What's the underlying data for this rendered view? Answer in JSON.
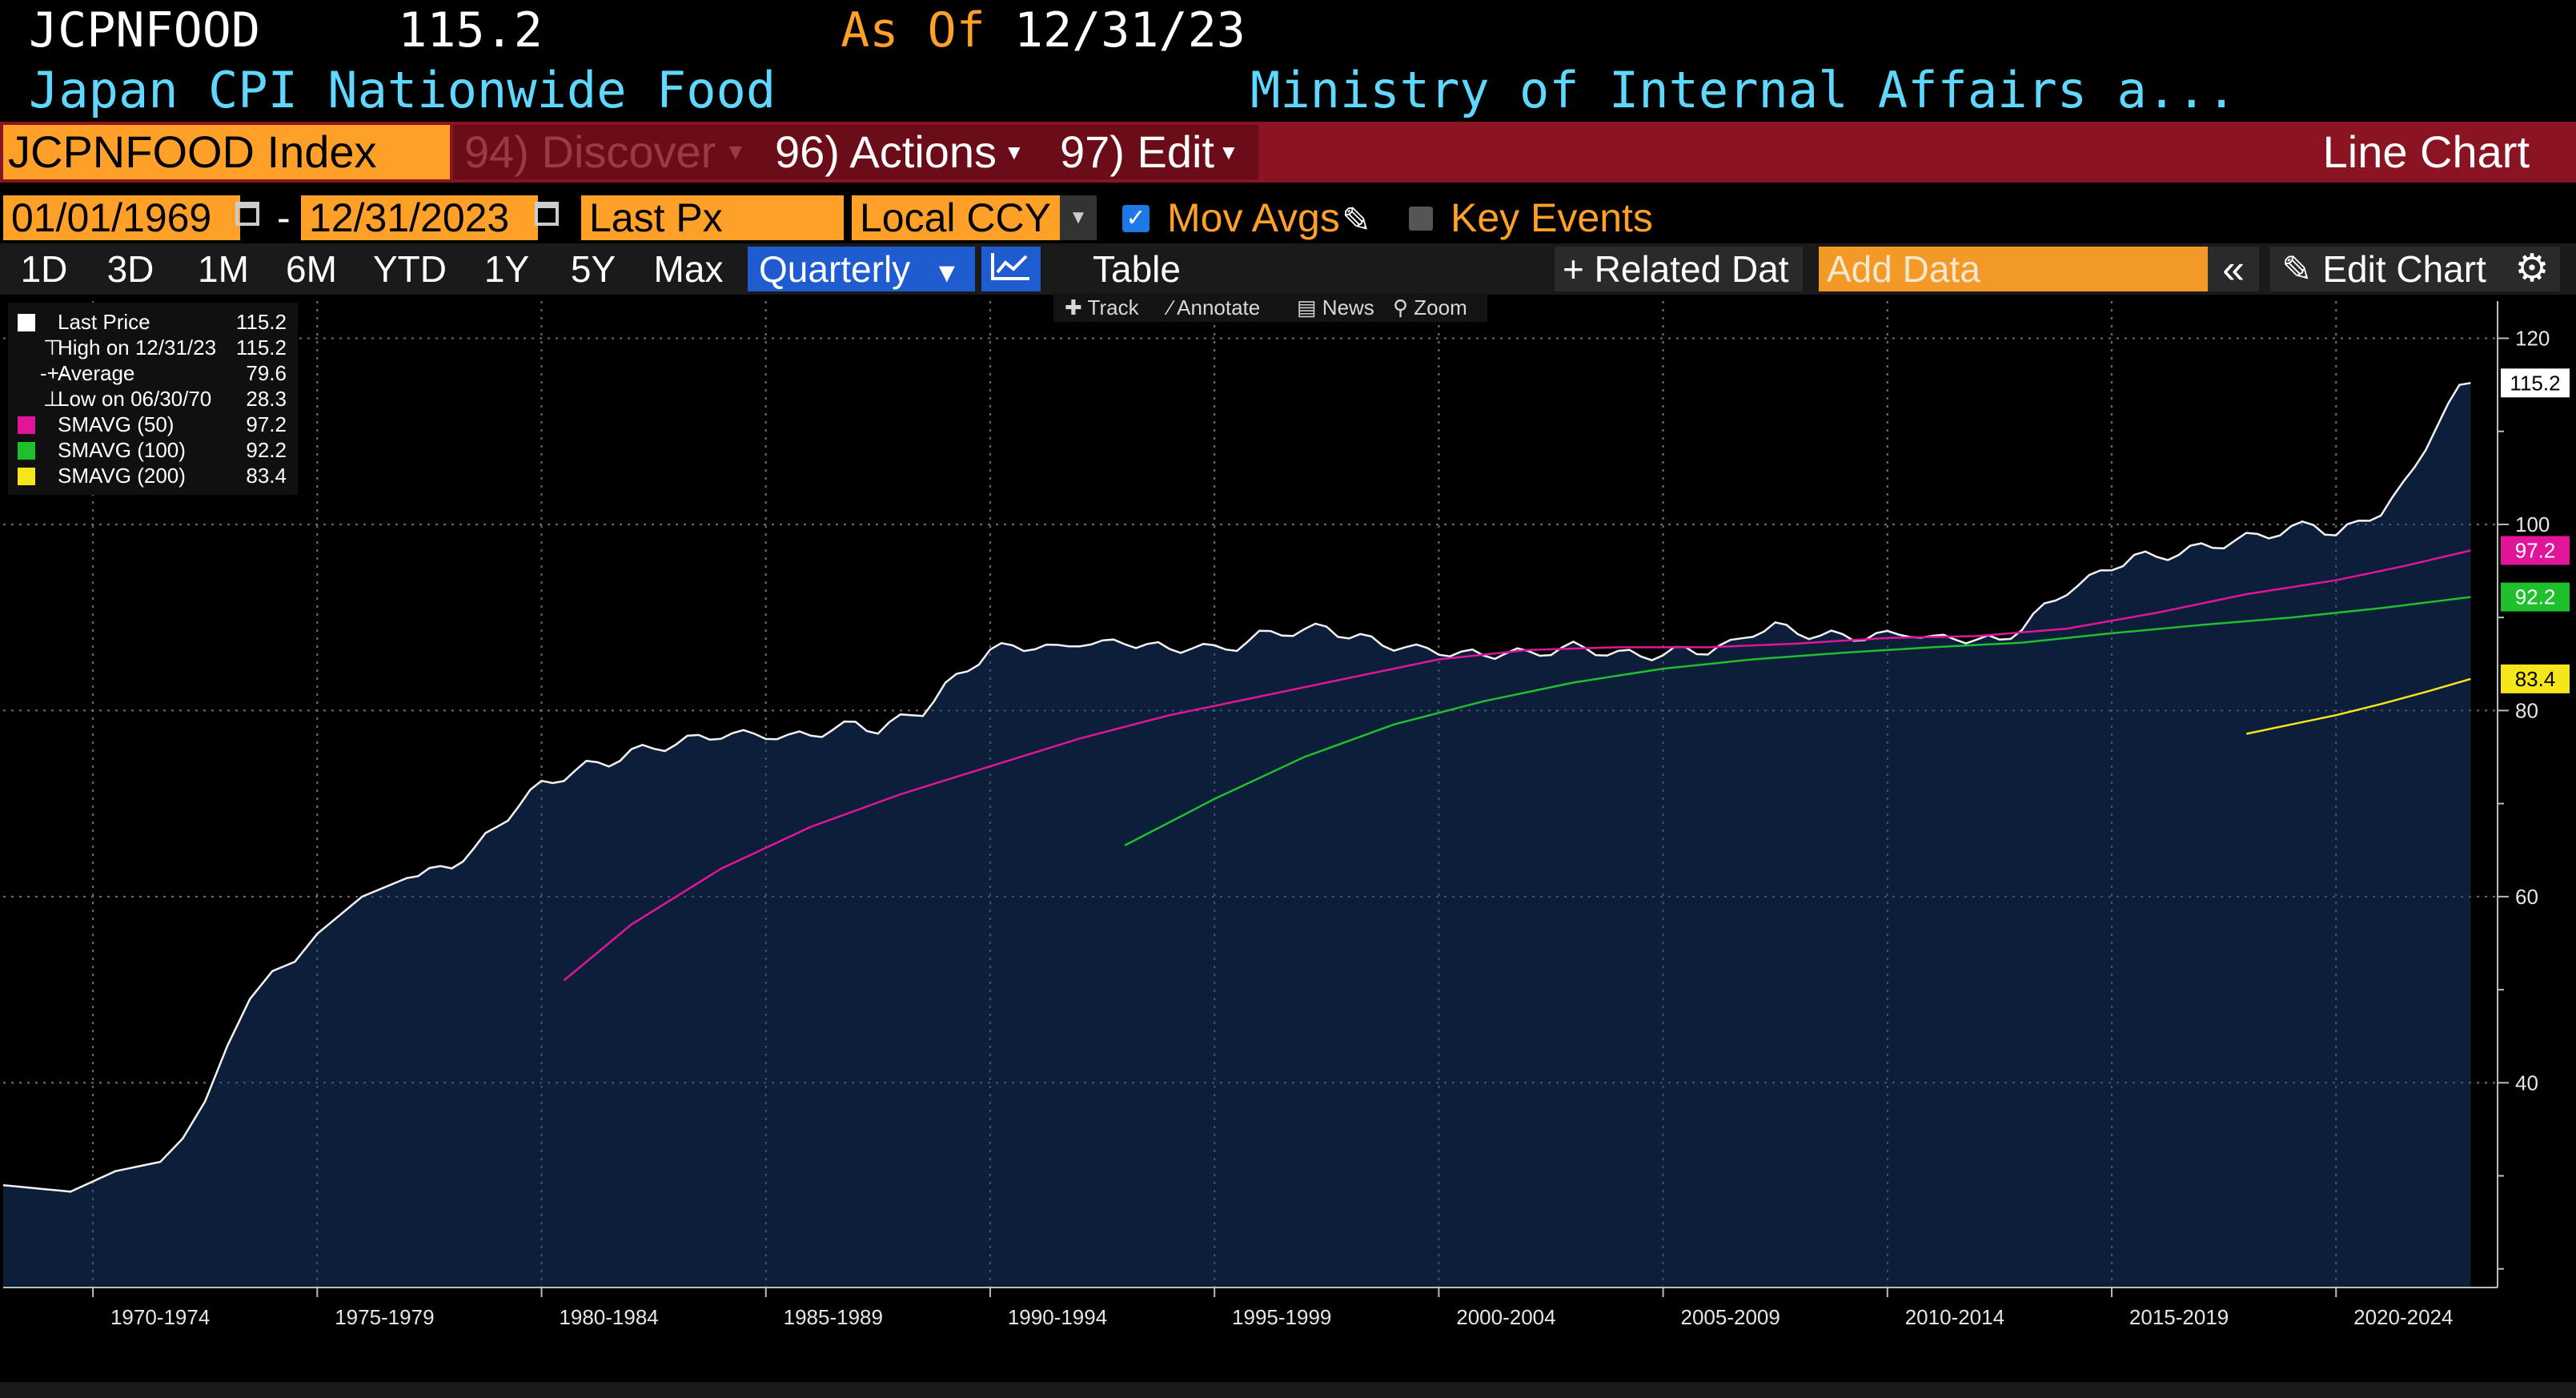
{
  "header": {
    "ticker": "JCPNFOOD",
    "price": "115.2",
    "as_of_label": "As Of",
    "as_of_date": "12/31/23",
    "name": "Japan CPI Nationwide Food",
    "source": "Ministry of Internal Affairs a..."
  },
  "toolbar": {
    "security": "JCPNFOOD Index",
    "discover": "94) Discover",
    "actions": "96) Actions",
    "edit": "97) Edit",
    "chart_type": "Line Chart"
  },
  "controls": {
    "start_date": "01/01/1969",
    "date_sep": "-",
    "end_date": "12/31/2023",
    "field": "Last Px",
    "currency": "Local CCY",
    "mov_avgs": "Mov Avgs",
    "key_events": "Key Events"
  },
  "periods": {
    "items": [
      "1D",
      "3D",
      "1M",
      "6M",
      "YTD",
      "1Y",
      "5Y",
      "Max"
    ],
    "frequency": "Quarterly",
    "table": "Table",
    "related": "+ Related Dat",
    "add_data_placeholder": "Add Data",
    "edit_chart": "Edit Chart"
  },
  "tools": [
    "Track",
    "Annotate",
    "News",
    "Zoom"
  ],
  "legend": [
    {
      "label": "Last Price",
      "value": "115.2",
      "color": "#ffffff"
    },
    {
      "label": "High on 12/31/23",
      "value": "115.2",
      "color": ""
    },
    {
      "label": "Average",
      "value": "79.6",
      "color": ""
    },
    {
      "label": "Low on 06/30/70",
      "value": "28.3",
      "color": ""
    },
    {
      "label": "SMAVG (50)",
      "value": "97.2",
      "color": "#e0159a"
    },
    {
      "label": "SMAVG (100)",
      "value": "92.2",
      "color": "#1fbf2e"
    },
    {
      "label": "SMAVG (200)",
      "value": "83.4",
      "color": "#f5e61c"
    }
  ],
  "chart_data": {
    "type": "line",
    "ylim": [
      18,
      124
    ],
    "yticks": [
      40,
      60,
      80,
      100,
      120
    ],
    "xlim": [
      1969.0,
      2024.6
    ],
    "x_ticks": [
      {
        "label": "1970-1974",
        "x": 1972.5
      },
      {
        "label": "1975-1979",
        "x": 1977.5
      },
      {
        "label": "1980-1984",
        "x": 1982.5
      },
      {
        "label": "1985-1989",
        "x": 1987.5
      },
      {
        "label": "1990-1994",
        "x": 1992.5
      },
      {
        "label": "1995-1999",
        "x": 1997.5
      },
      {
        "label": "2000-2004",
        "x": 2002.5
      },
      {
        "label": "2005-2009",
        "x": 2007.5
      },
      {
        "label": "2010-2014",
        "x": 2012.5
      },
      {
        "label": "2015-2019",
        "x": 2017.5
      },
      {
        "label": "2020-2024",
        "x": 2022.5
      }
    ],
    "x_grid": [
      1971,
      1976,
      1981,
      1986,
      1991,
      1996,
      2001,
      2006,
      2011,
      2016,
      2021
    ],
    "last_price_keys": [
      [
        1969.0,
        29.0
      ],
      [
        1970.5,
        28.3
      ],
      [
        1971.5,
        30.5
      ],
      [
        1972.5,
        31.5
      ],
      [
        1973.0,
        34.0
      ],
      [
        1973.5,
        38.0
      ],
      [
        1974.0,
        44.0
      ],
      [
        1974.5,
        49.0
      ],
      [
        1975.0,
        52.0
      ],
      [
        1975.5,
        53.0
      ],
      [
        1976.0,
        56.0
      ],
      [
        1976.5,
        58.0
      ],
      [
        1977.0,
        60.0
      ],
      [
        1977.5,
        61.0
      ],
      [
        1978.0,
        62.0
      ],
      [
        1978.5,
        62.5
      ],
      [
        1979.0,
        63.5
      ],
      [
        1979.5,
        65.0
      ],
      [
        1980.0,
        67.5
      ],
      [
        1980.5,
        70.0
      ],
      [
        1981.0,
        72.0
      ],
      [
        1981.5,
        73.0
      ],
      [
        1982.0,
        74.0
      ],
      [
        1982.5,
        74.5
      ],
      [
        1983.0,
        75.5
      ],
      [
        1983.5,
        76.0
      ],
      [
        1984.0,
        76.5
      ],
      [
        1984.5,
        77.0
      ],
      [
        1985.0,
        77.5
      ],
      [
        1985.5,
        77.3
      ],
      [
        1986.0,
        77.5
      ],
      [
        1986.5,
        77.0
      ],
      [
        1987.0,
        77.5
      ],
      [
        1987.5,
        78.0
      ],
      [
        1988.0,
        78.5
      ],
      [
        1988.5,
        78.0
      ],
      [
        1989.0,
        79.0
      ],
      [
        1989.5,
        80.0
      ],
      [
        1990.0,
        82.5
      ],
      [
        1990.5,
        84.5
      ],
      [
        1991.0,
        86.5
      ],
      [
        1991.5,
        86.8
      ],
      [
        1992.0,
        87.0
      ],
      [
        1992.5,
        86.5
      ],
      [
        1993.0,
        87.5
      ],
      [
        1993.5,
        87.0
      ],
      [
        1994.0,
        87.5
      ],
      [
        1994.5,
        87.0
      ],
      [
        1995.0,
        86.5
      ],
      [
        1995.5,
        87.0
      ],
      [
        1996.0,
        86.5
      ],
      [
        1996.5,
        87.0
      ],
      [
        1997.0,
        88.0
      ],
      [
        1997.5,
        88.5
      ],
      [
        1998.0,
        88.5
      ],
      [
        1998.5,
        89.0
      ],
      [
        1999.0,
        88.0
      ],
      [
        1999.5,
        87.5
      ],
      [
        2000.0,
        87.0
      ],
      [
        2000.5,
        86.5
      ],
      [
        2001.0,
        86.5
      ],
      [
        2001.5,
        86.0
      ],
      [
        2002.0,
        86.0
      ],
      [
        2002.5,
        86.3
      ],
      [
        2003.0,
        86.0
      ],
      [
        2003.5,
        86.5
      ],
      [
        2004.0,
        86.8
      ],
      [
        2004.5,
        86.5
      ],
      [
        2005.0,
        86.0
      ],
      [
        2005.5,
        86.0
      ],
      [
        2006.0,
        86.0
      ],
      [
        2006.5,
        86.5
      ],
      [
        2007.0,
        86.5
      ],
      [
        2007.5,
        87.0
      ],
      [
        2008.0,
        88.5
      ],
      [
        2008.5,
        89.0
      ],
      [
        2009.0,
        88.5
      ],
      [
        2009.5,
        88.0
      ],
      [
        2010.0,
        88.0
      ],
      [
        2010.5,
        88.0
      ],
      [
        2011.0,
        88.0
      ],
      [
        2011.5,
        88.5
      ],
      [
        2012.0,
        87.5
      ],
      [
        2012.5,
        88.0
      ],
      [
        2013.0,
        87.5
      ],
      [
        2013.5,
        87.5
      ],
      [
        2014.0,
        89.0
      ],
      [
        2014.5,
        91.0
      ],
      [
        2015.0,
        93.0
      ],
      [
        2015.5,
        94.0
      ],
      [
        2016.0,
        95.5
      ],
      [
        2016.5,
        96.5
      ],
      [
        2017.0,
        96.5
      ],
      [
        2017.5,
        97.0
      ],
      [
        2018.0,
        97.5
      ],
      [
        2018.5,
        98.0
      ],
      [
        2019.0,
        98.5
      ],
      [
        2019.5,
        99.0
      ],
      [
        2020.0,
        99.5
      ],
      [
        2020.5,
        100.0
      ],
      [
        2021.0,
        99.0
      ],
      [
        2021.5,
        100.0
      ],
      [
        2022.0,
        101.5
      ],
      [
        2022.5,
        104.0
      ],
      [
        2023.0,
        108.0
      ],
      [
        2023.5,
        113.0
      ],
      [
        2023.75,
        115.0
      ],
      [
        2024.0,
        115.2
      ]
    ],
    "series": [
      {
        "name": "SMAVG (50)",
        "color": "#e0159a",
        "points": [
          [
            1981.5,
            51.0
          ],
          [
            1983.0,
            57.0
          ],
          [
            1985.0,
            63.0
          ],
          [
            1987.0,
            67.5
          ],
          [
            1989.0,
            71.0
          ],
          [
            1991.0,
            74.0
          ],
          [
            1993.0,
            77.0
          ],
          [
            1995.0,
            79.5
          ],
          [
            1997.0,
            81.5
          ],
          [
            1999.0,
            83.5
          ],
          [
            2001.0,
            85.5
          ],
          [
            2003.0,
            86.5
          ],
          [
            2005.0,
            86.8
          ],
          [
            2007.0,
            86.8
          ],
          [
            2009.0,
            87.2
          ],
          [
            2011.0,
            87.8
          ],
          [
            2013.0,
            88.0
          ],
          [
            2015.0,
            88.8
          ],
          [
            2017.0,
            90.5
          ],
          [
            2019.0,
            92.5
          ],
          [
            2021.0,
            94.0
          ],
          [
            2022.5,
            95.5
          ],
          [
            2024.0,
            97.2
          ]
        ]
      },
      {
        "name": "SMAVG (100)",
        "color": "#1fbf2e",
        "points": [
          [
            1994.0,
            65.5
          ],
          [
            1996.0,
            70.5
          ],
          [
            1998.0,
            75.0
          ],
          [
            2000.0,
            78.5
          ],
          [
            2002.0,
            81.0
          ],
          [
            2004.0,
            83.0
          ],
          [
            2006.0,
            84.5
          ],
          [
            2008.0,
            85.5
          ],
          [
            2010.0,
            86.2
          ],
          [
            2012.0,
            86.8
          ],
          [
            2014.0,
            87.3
          ],
          [
            2016.0,
            88.3
          ],
          [
            2018.0,
            89.2
          ],
          [
            2020.0,
            90.0
          ],
          [
            2022.0,
            91.0
          ],
          [
            2024.0,
            92.2
          ]
        ]
      },
      {
        "name": "SMAVG (200)",
        "color": "#f5e61c",
        "points": [
          [
            2019.0,
            77.5
          ],
          [
            2020.0,
            78.5
          ],
          [
            2021.0,
            79.5
          ],
          [
            2022.0,
            80.7
          ],
          [
            2023.0,
            82.0
          ],
          [
            2024.0,
            83.4
          ]
        ]
      }
    ],
    "right_labels": [
      {
        "value": "115.2",
        "bg": "#ffffff",
        "fg": "#000000"
      },
      {
        "value": "97.2",
        "bg": "#e0159a",
        "fg": "#ffffff"
      },
      {
        "value": "92.2",
        "bg": "#1fbf2e",
        "fg": "#ffffff"
      },
      {
        "value": "83.4",
        "bg": "#f5e61c",
        "fg": "#000000"
      }
    ]
  }
}
